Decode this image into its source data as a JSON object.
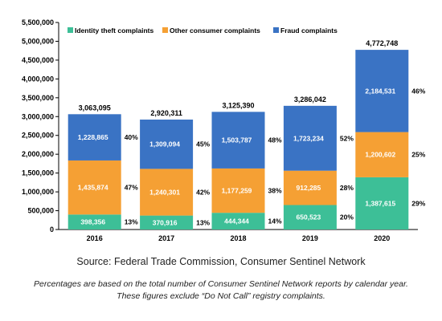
{
  "chart_data": {
    "type": "bar",
    "stacked": true,
    "categories": [
      "2016",
      "2017",
      "2018",
      "2019",
      "2020"
    ],
    "series": [
      {
        "name": "Identity theft complaints",
        "color": "#3dbf97",
        "values": [
          398356,
          370916,
          444344,
          650523,
          1387615
        ],
        "labels": [
          "398,356",
          "370,916",
          "444,344",
          "650,523",
          "1,387,615"
        ],
        "percents": [
          "13%",
          "13%",
          "14%",
          "20%",
          "29%"
        ]
      },
      {
        "name": "Other consumer complaints",
        "color": "#f5a034",
        "values": [
          1435874,
          1240301,
          1177259,
          912285,
          1200602
        ],
        "labels": [
          "1,435,874",
          "1,240,301",
          "1,177,259",
          "912,285",
          "1,200,602"
        ],
        "percents": [
          "47%",
          "42%",
          "38%",
          "28%",
          "25%"
        ]
      },
      {
        "name": "Fraud complaints",
        "color": "#3a73c4",
        "values": [
          1228865,
          1309094,
          1503787,
          1723234,
          2184531
        ],
        "labels": [
          "1,228,865",
          "1,309,094",
          "1,503,787",
          "1,723,234",
          "2,184,531"
        ],
        "percents": [
          "40%",
          "45%",
          "48%",
          "52%",
          "46%"
        ]
      }
    ],
    "totals": [
      "3,063,095",
      "2,920,311",
      "3,125,390",
      "3,286,042",
      "4,772,748"
    ],
    "ylim": [
      0,
      5500000
    ],
    "yticks": [
      0,
      500000,
      1000000,
      1500000,
      2000000,
      2500000,
      3000000,
      3500000,
      4000000,
      4500000,
      5000000,
      5500000
    ],
    "ytick_labels": [
      "0",
      "500,000",
      "1,000,000",
      "1,500,000",
      "2,000,000",
      "2,500,000",
      "3,000,000",
      "3,500,000",
      "4,000,000",
      "4,500,000",
      "5,000,000",
      "5,500,000"
    ],
    "legend_position": "top",
    "grid": false
  },
  "source": "Source: Federal Trade Commission, Consumer Sentinel Network",
  "note_line1": "Percentages are based on the total number of Consumer Sentinel Network reports by calendar year.",
  "note_line2": "These figures exclude “Do Not Call” registry complaints."
}
